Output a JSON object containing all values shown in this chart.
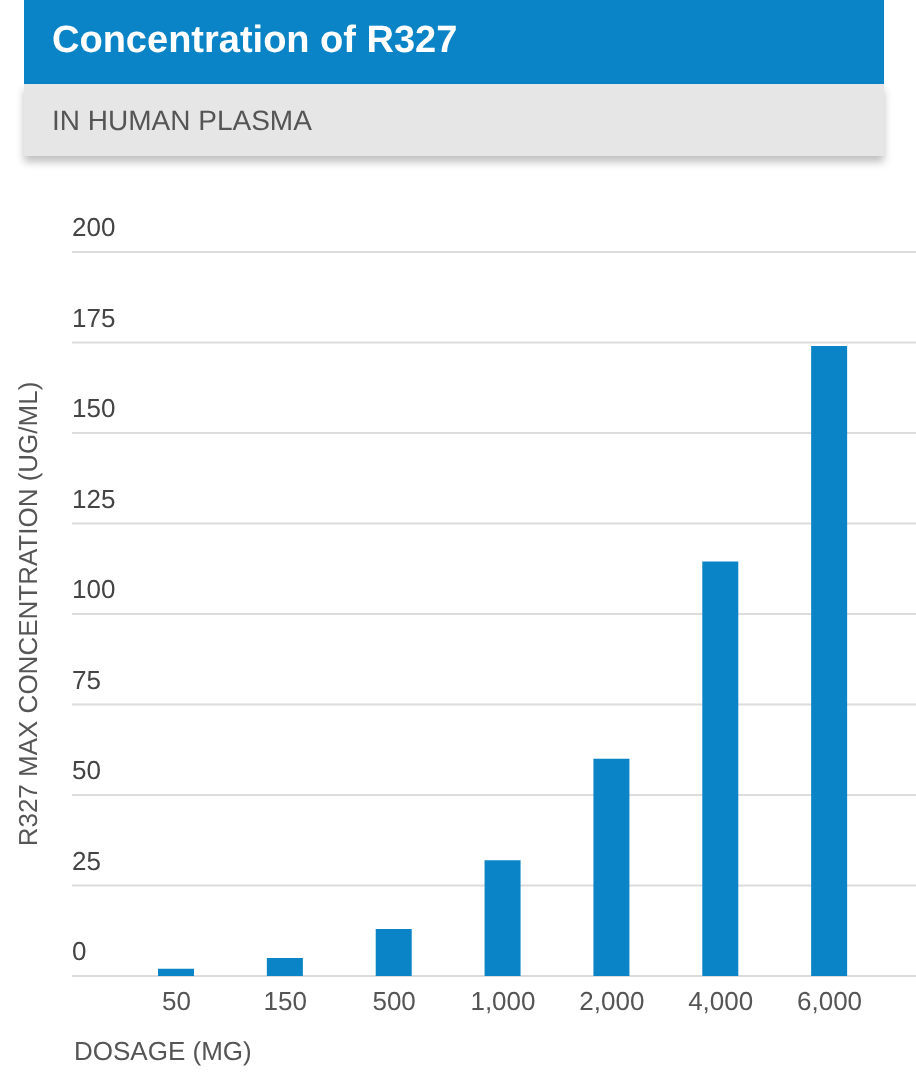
{
  "chart_data": {
    "type": "bar",
    "title": "Concentration of R327",
    "subtitle": "IN HUMAN PLASMA",
    "xlabel": "DOSAGE (MG)",
    "ylabel": "R327 MAX CONCENTRATION (UG/ML)",
    "categories": [
      "50",
      "150",
      "500",
      "1,000",
      "2,000",
      "4,000",
      "6,000"
    ],
    "values": [
      2,
      5,
      13,
      32,
      60,
      114.5,
      174
    ],
    "color": "#0a84c6",
    "ylim": [
      0,
      200
    ],
    "yticks": [
      0,
      25,
      50,
      75,
      100,
      125,
      150,
      175,
      200
    ],
    "grid": "y",
    "legend": false
  }
}
